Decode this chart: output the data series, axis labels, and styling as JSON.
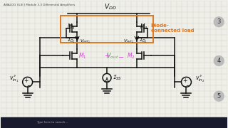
{
  "bg_color": "#efefea",
  "grid_color": "#d0d0c0",
  "title_text": "ANALOG VLSI | Module 3.3 Differential Amplifiers",
  "box_color": "#e07820",
  "diode_label": "Diode-\nconnected load",
  "plus_color": "#cc44cc",
  "minus_color": "#cc44cc",
  "m1_color": "#cc44cc",
  "m2_color": "#cc44cc",
  "vout_color": "#44aa44",
  "black": "#111111",
  "taskbar_color": "#1a1a2e",
  "slide_circle_color": "#bbbbbb"
}
